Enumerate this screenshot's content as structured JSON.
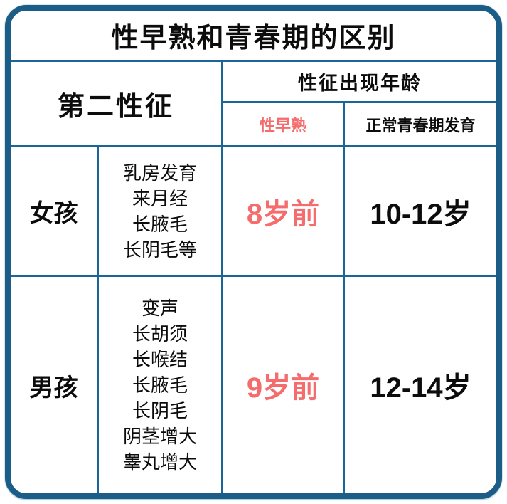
{
  "title": "性早熟和青春期的区别",
  "colors": {
    "outer_border": "#1c5d87",
    "grid_line": "#1b6699",
    "accent_red": "#f56c6c",
    "text": "#0c0c0c",
    "background": "#ffffff"
  },
  "table": {
    "secondary_header": "第二性征",
    "age_header": "性征出现年龄",
    "sub_headers": {
      "early": "性早熟",
      "normal": "正常青春期发育"
    },
    "rows": [
      {
        "gender": "女孩",
        "traits": [
          "乳房发育",
          "来月经",
          "长腋毛",
          "长阴毛等"
        ],
        "early_age": "8岁前",
        "normal_age": "10-12岁"
      },
      {
        "gender": "男孩",
        "traits": [
          "变声",
          "长胡须",
          "长喉结",
          "长腋毛",
          "长阴毛",
          "阴茎增大",
          "睾丸增大"
        ],
        "early_age": "9岁前",
        "normal_age": "12-14岁"
      }
    ]
  },
  "chart_data": {
    "type": "table",
    "title": "性早熟和青春期的区别",
    "columns": [
      "第二性征",
      "性征出现年龄：性早熟",
      "性征出现年龄：正常青春期发育"
    ],
    "rows": [
      [
        "女孩：乳房发育、来月经、长腋毛、长阴毛等",
        "8岁前",
        "10-12岁"
      ],
      [
        "男孩：变声、长胡须、长喉结、长腋毛、长阴毛、阴茎增大、睾丸增大",
        "9岁前",
        "12-14岁"
      ]
    ],
    "layout": {
      "grid": "on",
      "accent_cells_color": "#f56c6c",
      "border_style": "rounded-outer-frame"
    }
  }
}
